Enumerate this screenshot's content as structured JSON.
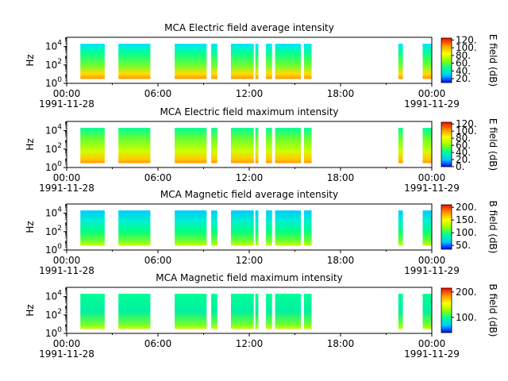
{
  "chart_data": [
    {
      "type": "heatmap",
      "title": "MCA  Electric field average intensity",
      "ylabel": "Hz",
      "y_scale": "log",
      "ylim": [
        1,
        100000
      ],
      "y_ticks": [
        {
          "label": "10",
          "exp": "0"
        },
        {
          "label": "10",
          "exp": "2"
        },
        {
          "label": "10",
          "exp": "4"
        }
      ],
      "x_ticks": [
        "00:00",
        "06:00",
        "12:00",
        "18:00",
        "00:00"
      ],
      "x_date_labels": [
        "1991-11-28",
        "1991-11-29"
      ],
      "xlim": [
        "1991-11-28T00:00",
        "1991-11-29T00:00"
      ],
      "colorbar": {
        "label": "E field (dB)",
        "range": [
          10,
          125
        ],
        "ticks": [
          "20.",
          "40.",
          "60.",
          "80.",
          "100.",
          "120."
        ],
        "tick_values": [
          20,
          40,
          60,
          80,
          100,
          120
        ]
      },
      "data_intervals_hours": [
        [
          0.9,
          2.5
        ],
        [
          3.4,
          5.5
        ],
        [
          7.1,
          9.2
        ],
        [
          9.5,
          9.9
        ],
        [
          10.8,
          12.3
        ],
        [
          12.4,
          12.6
        ],
        [
          13.1,
          13.5
        ],
        [
          13.7,
          15.4
        ],
        [
          15.6,
          16.1
        ],
        [
          21.8,
          22.1
        ],
        [
          23.4,
          24.0
        ]
      ],
      "freq_range_hz": [
        3,
        20000
      ]
    },
    {
      "type": "heatmap",
      "title": "MCA  Electric field maximum intensity",
      "ylabel": "Hz",
      "y_scale": "log",
      "ylim": [
        1,
        100000
      ],
      "y_ticks": [
        {
          "label": "10",
          "exp": "0"
        },
        {
          "label": "10",
          "exp": "2"
        },
        {
          "label": "10",
          "exp": "4"
        }
      ],
      "x_ticks": [
        "00:00",
        "06:00",
        "12:00",
        "18:00",
        "00:00"
      ],
      "x_date_labels": [
        "1991-11-28",
        "1991-11-29"
      ],
      "xlim": [
        "1991-11-28T00:00",
        "1991-11-29T00:00"
      ],
      "colorbar": {
        "label": "E field (dB)",
        "range": [
          0,
          125
        ],
        "ticks": [
          "0.",
          "20.",
          "40.",
          "60.",
          "80.",
          "100.",
          "120."
        ],
        "tick_values": [
          0,
          20,
          40,
          60,
          80,
          100,
          120
        ]
      },
      "data_intervals_hours": [
        [
          0.9,
          2.5
        ],
        [
          3.4,
          5.5
        ],
        [
          7.1,
          9.2
        ],
        [
          9.5,
          9.9
        ],
        [
          10.8,
          12.3
        ],
        [
          12.4,
          12.6
        ],
        [
          13.1,
          13.5
        ],
        [
          13.7,
          15.4
        ],
        [
          15.6,
          16.1
        ],
        [
          21.8,
          22.1
        ],
        [
          23.4,
          24.0
        ]
      ],
      "freq_range_hz": [
        3,
        20000
      ]
    },
    {
      "type": "heatmap",
      "title": "MCA  Magnetic field average intensity",
      "ylabel": "Hz",
      "y_scale": "log",
      "ylim": [
        1,
        100000
      ],
      "y_ticks": [
        {
          "label": "10",
          "exp": "0"
        },
        {
          "label": "10",
          "exp": "2"
        },
        {
          "label": "10",
          "exp": "4"
        }
      ],
      "x_ticks": [
        "00:00",
        "06:00",
        "12:00",
        "18:00",
        "00:00"
      ],
      "x_date_labels": [
        "1991-11-28",
        "1991-11-29"
      ],
      "xlim": [
        "1991-11-28T00:00",
        "1991-11-29T00:00"
      ],
      "colorbar": {
        "label": "B field (dB)",
        "range": [
          35,
          210
        ],
        "ticks": [
          "50.",
          "100.",
          "150.",
          "200."
        ],
        "tick_values": [
          50,
          100,
          150,
          200
        ]
      },
      "data_intervals_hours": [
        [
          0.9,
          2.5
        ],
        [
          3.4,
          5.5
        ],
        [
          7.1,
          9.2
        ],
        [
          9.5,
          9.9
        ],
        [
          10.8,
          12.3
        ],
        [
          12.4,
          12.6
        ],
        [
          13.1,
          13.5
        ],
        [
          13.7,
          15.4
        ],
        [
          15.6,
          16.1
        ],
        [
          21.8,
          22.1
        ],
        [
          23.4,
          24.0
        ]
      ],
      "freq_range_hz": [
        3,
        20000
      ]
    },
    {
      "type": "heatmap",
      "title": "MCA  Magnetic field maximum intensity",
      "ylabel": "Hz",
      "y_scale": "log",
      "ylim": [
        1,
        100000
      ],
      "y_ticks": [
        {
          "label": "10",
          "exp": "0"
        },
        {
          "label": "10",
          "exp": "2"
        },
        {
          "label": "10",
          "exp": "4"
        }
      ],
      "x_ticks": [
        "00:00",
        "06:00",
        "12:00",
        "18:00",
        "00:00"
      ],
      "x_date_labels": [
        "1991-11-28",
        "1991-11-29"
      ],
      "xlim": [
        "1991-11-28T00:00",
        "1991-11-29T00:00"
      ],
      "colorbar": {
        "label": "B field (dB)",
        "range": [
          40,
          215
        ],
        "ticks": [
          "100.",
          "200."
        ],
        "tick_values": [
          100,
          200
        ]
      },
      "data_intervals_hours": [
        [
          0.9,
          2.5
        ],
        [
          3.4,
          5.5
        ],
        [
          7.1,
          9.2
        ],
        [
          9.5,
          9.9
        ],
        [
          10.8,
          12.3
        ],
        [
          12.4,
          12.6
        ],
        [
          13.1,
          13.5
        ],
        [
          13.7,
          15.4
        ],
        [
          15.6,
          16.1
        ],
        [
          21.8,
          22.1
        ],
        [
          23.4,
          24.0
        ]
      ],
      "freq_range_hz": [
        3,
        20000
      ]
    }
  ],
  "colors": {
    "axes": "#000000",
    "colormap": [
      "#0000ff",
      "#00c8ff",
      "#00ff96",
      "#96ff00",
      "#ffff00",
      "#ff9600",
      "#ff0000"
    ]
  }
}
